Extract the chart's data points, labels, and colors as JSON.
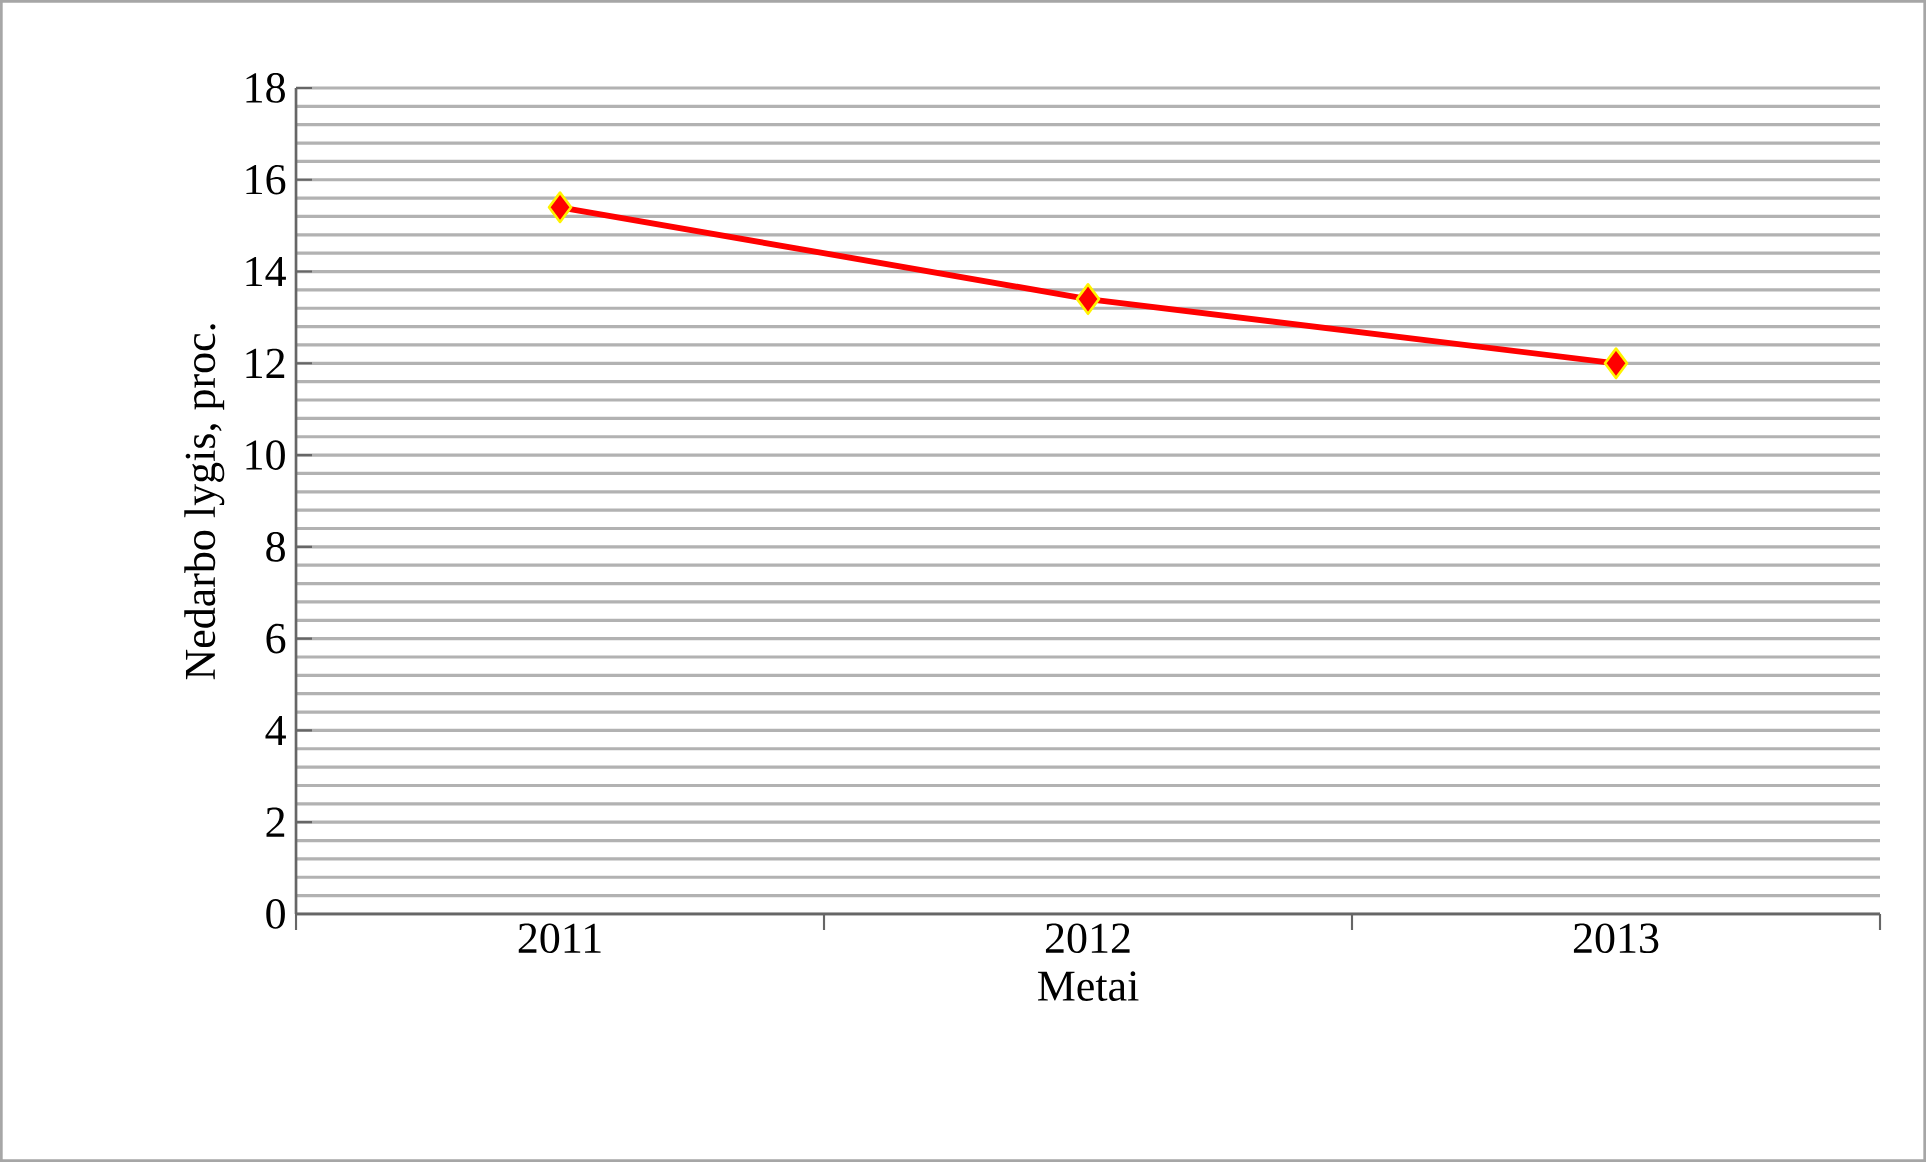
{
  "chart_data": {
    "type": "line",
    "xlabel": "Metai",
    "ylabel": "Nedarbo lygis, proc.",
    "categories": [
      "2011",
      "2012",
      "2013"
    ],
    "series": [
      {
        "color": "#ff0000",
        "values": [
          15.4,
          13.4,
          12.0
        ]
      }
    ],
    "ylim": [
      0,
      18
    ],
    "yticks": [
      0,
      2,
      4,
      6,
      8,
      10,
      12,
      14,
      16,
      18
    ],
    "grid": "y",
    "marker": "diamond",
    "line_style": "solid"
  }
}
